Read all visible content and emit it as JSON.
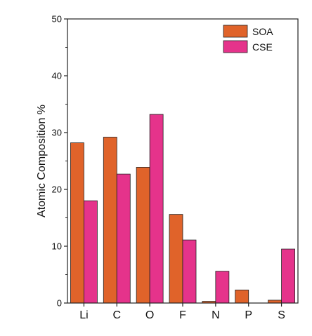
{
  "chart_data": {
    "type": "bar",
    "categories": [
      "Li",
      "C",
      "O",
      "F",
      "N",
      "P",
      "S"
    ],
    "series": [
      {
        "name": "SOA",
        "color": "#e0632a",
        "values": [
          28.2,
          29.2,
          23.9,
          15.6,
          0.3,
          2.3,
          0.5
        ]
      },
      {
        "name": "CSE",
        "color": "#e5338b",
        "values": [
          18.0,
          22.7,
          33.2,
          11.1,
          5.6,
          0.0,
          9.5
        ]
      }
    ],
    "ylabel": "Atomic Composition %",
    "ylim": [
      0,
      50
    ],
    "yticks": [
      0,
      10,
      20,
      30,
      40,
      50
    ],
    "legend_position": "top-right",
    "grid": false
  }
}
